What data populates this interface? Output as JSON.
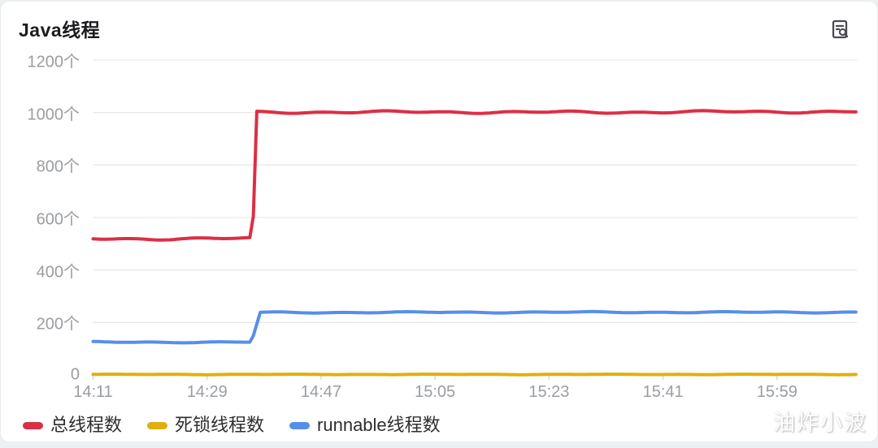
{
  "header": {
    "title": "Java线程",
    "detail_icon": "document-search-icon"
  },
  "colors": {
    "red": "#dc2f45",
    "yellow": "#dfaf10",
    "blue": "#568fea",
    "grid": "#e9e9e9",
    "tick": "#d8d8d8",
    "axis_text": "#9a9da1",
    "card_bg": "#ffffff",
    "page_bg": "#edf0f2"
  },
  "chart_data": {
    "type": "line",
    "title": "Java线程",
    "unit": "个",
    "grid": true,
    "legend_position": "bottom",
    "ylim": [
      0,
      1200
    ],
    "y_ticks": [
      {
        "value": 0,
        "label": "0"
      },
      {
        "value": 200,
        "label": "200个"
      },
      {
        "value": 400,
        "label": "400个"
      },
      {
        "value": 600,
        "label": "600个"
      },
      {
        "value": 800,
        "label": "800个"
      },
      {
        "value": 1000,
        "label": "1000个"
      },
      {
        "value": 1200,
        "label": "1200个"
      }
    ],
    "x_domain_minutes": [
      0,
      120.6
    ],
    "x_ticks": [
      {
        "minute": 0,
        "label": "14:11"
      },
      {
        "minute": 18,
        "label": "14:29"
      },
      {
        "minute": 36,
        "label": "14:47"
      },
      {
        "minute": 54,
        "label": "15:05"
      },
      {
        "minute": 72,
        "label": "15:23"
      },
      {
        "minute": 90,
        "label": "15:41"
      },
      {
        "minute": 108,
        "label": "15:59"
      }
    ],
    "series": [
      {
        "name": "死锁线程数",
        "color": "#dfaf10",
        "points": [
          [
            0,
            2
          ],
          [
            120.6,
            2
          ]
        ]
      },
      {
        "name": "runnable线程数",
        "color": "#568fea",
        "points": [
          [
            0,
            125
          ],
          [
            25.0,
            125
          ],
          [
            26.4,
            238
          ],
          [
            70,
            239
          ],
          [
            120.6,
            239
          ]
        ]
      },
      {
        "name": "总线程数",
        "color": "#dc2f45",
        "points": [
          [
            0,
            519
          ],
          [
            12,
            519
          ],
          [
            25.2,
            520
          ],
          [
            25.8,
            1001
          ],
          [
            50,
            1002
          ],
          [
            80,
            1001
          ],
          [
            100,
            1003
          ],
          [
            120.6,
            1003
          ]
        ]
      }
    ]
  },
  "legend": {
    "items": [
      {
        "label": "总线程数",
        "color": "#dc2f45"
      },
      {
        "label": "死锁线程数",
        "color": "#dfaf10"
      },
      {
        "label": "runnable线程数",
        "color": "#568fea"
      }
    ]
  },
  "watermark": "油炸小波"
}
